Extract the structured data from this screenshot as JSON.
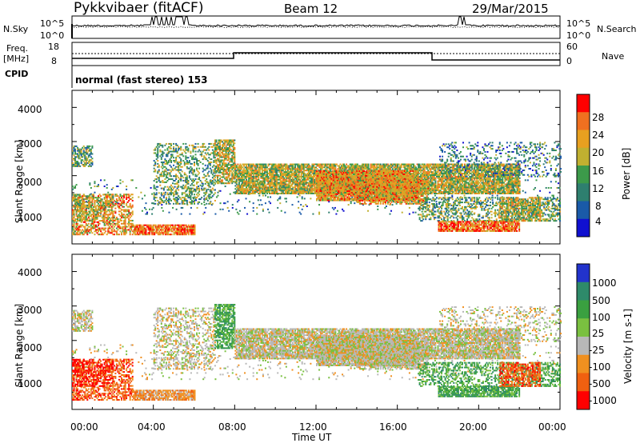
{
  "header": {
    "title": "Pykkvibaer (fitACF)",
    "beam": "Beam 12",
    "date": "29/Mar/2015"
  },
  "top_panel": {
    "left_label": "N.Sky",
    "left_ticks": [
      "10^5",
      "10^0"
    ],
    "right_label": "N.Search",
    "right_ticks": [
      "10^5",
      "10^0"
    ]
  },
  "freq_panel": {
    "left_label_1": "Freq.",
    "left_label_2": "[MHz]",
    "left_ticks": [
      "18",
      "8"
    ],
    "right_label": "Nave",
    "right_ticks": [
      "60",
      "0"
    ],
    "cpid_label": "CPID",
    "cpid_text": "normal (fast stereo) 153"
  },
  "chart_data": [
    {
      "type": "heatmap",
      "name": "Power",
      "ylabel": "Slant Range [km]",
      "yticks": [
        "1000",
        "2000",
        "3000",
        "4000"
      ],
      "colorbar_label": "Power [dB]",
      "colorbar_ticks": [
        "4",
        "8",
        "12",
        "16",
        "20",
        "24",
        "28"
      ],
      "colors": [
        "#1010d0",
        "#1a5aa8",
        "#2e7f6f",
        "#3c9a4a",
        "#c0b030",
        "#e8a020",
        "#f07020",
        "#ff0000"
      ]
    },
    {
      "type": "heatmap",
      "name": "Velocity",
      "ylabel": "Slant Range [km]",
      "yticks": [
        "1000",
        "2000",
        "3000",
        "4000"
      ],
      "colorbar_label": "Velocity [m s-1]",
      "colorbar_ticks": [
        "1000",
        "500",
        "100",
        "25",
        "-25",
        "-100",
        "-500",
        "-1000"
      ],
      "colors": [
        "#2233cc",
        "#2e8a6a",
        "#3aa040",
        "#7ac040",
        "#b8b8b8",
        "#f09020",
        "#f06010",
        "#ff0000"
      ],
      "xlabel": "Time UT",
      "xticks": [
        "00:00",
        "04:00",
        "08:00",
        "12:00",
        "16:00",
        "20:00",
        "00:00"
      ]
    }
  ]
}
